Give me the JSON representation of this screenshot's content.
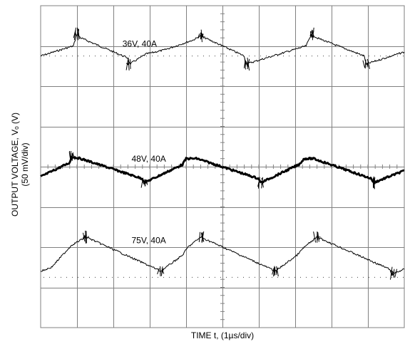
{
  "chart_data": {
    "type": "line",
    "title": "",
    "xlabel": "TIME t, (1µs/div)",
    "ylabel_line1": "OUTPUT VOLTAGE, Vₒ (V)",
    "ylabel_line2": "(50 mV/div)",
    "x_units": "div (1 µs/div)",
    "y_units": "div (50 mV/div)",
    "xlim": [
      0,
      10
    ],
    "ylim": [
      -4,
      4
    ],
    "grid": true,
    "grid_divisions": {
      "x": 10,
      "y": 8
    },
    "series": [
      {
        "name": "36V, 40A",
        "label": "36V, 40A",
        "points": [
          [
            0.0,
            2.75
          ],
          [
            0.9,
            3.0
          ],
          [
            1.0,
            3.3
          ],
          [
            1.1,
            3.2
          ],
          [
            2.4,
            2.7
          ],
          [
            2.45,
            2.55
          ],
          [
            2.9,
            2.8
          ],
          [
            3.4,
            2.9
          ],
          [
            4.2,
            3.15
          ],
          [
            4.4,
            3.25
          ],
          [
            5.6,
            2.75
          ],
          [
            5.65,
            2.55
          ],
          [
            7.3,
            3.0
          ],
          [
            7.45,
            3.3
          ],
          [
            7.6,
            3.2
          ],
          [
            8.9,
            2.75
          ],
          [
            8.95,
            2.55
          ],
          [
            10.0,
            2.85
          ]
        ]
      },
      {
        "name": "48V, 40A",
        "label": "48V, 40A",
        "points": [
          [
            0.0,
            -0.25
          ],
          [
            0.8,
            0.1
          ],
          [
            0.85,
            0.25
          ],
          [
            1.1,
            0.2
          ],
          [
            2.8,
            -0.3
          ],
          [
            2.85,
            -0.4
          ],
          [
            3.9,
            0.05
          ],
          [
            4.0,
            0.2
          ],
          [
            4.3,
            0.2
          ],
          [
            6.0,
            -0.3
          ],
          [
            6.05,
            -0.4
          ],
          [
            7.1,
            0.05
          ],
          [
            7.25,
            0.2
          ],
          [
            7.5,
            0.2
          ],
          [
            9.1,
            -0.3
          ],
          [
            9.15,
            -0.4
          ],
          [
            10.0,
            -0.1
          ]
        ]
      },
      {
        "name": "75V, 40A",
        "label": "75V, 40A",
        "points": [
          [
            0.0,
            -2.6
          ],
          [
            0.3,
            -2.5
          ],
          [
            0.75,
            -2.05
          ],
          [
            0.85,
            -1.95
          ],
          [
            1.25,
            -1.75
          ],
          [
            3.2,
            -2.55
          ],
          [
            3.3,
            -2.6
          ],
          [
            3.9,
            -2.2
          ],
          [
            4.05,
            -2.0
          ],
          [
            4.4,
            -1.75
          ],
          [
            6.35,
            -2.55
          ],
          [
            6.45,
            -2.6
          ],
          [
            7.05,
            -2.2
          ],
          [
            7.25,
            -2.0
          ],
          [
            7.6,
            -1.75
          ],
          [
            9.6,
            -2.55
          ],
          [
            9.7,
            -2.65
          ],
          [
            10.0,
            -2.55
          ]
        ]
      }
    ],
    "series_label_positions": [
      {
        "x": 2.25,
        "y": 2.98
      },
      {
        "x": 2.5,
        "y": 0.12
      },
      {
        "x": 2.5,
        "y": -1.9
      }
    ],
    "reference_levels": [
      2.75,
      -2.75
    ],
    "colors": {
      "trace": "#000000",
      "grid": "#808080",
      "background": "#ffffff"
    }
  }
}
